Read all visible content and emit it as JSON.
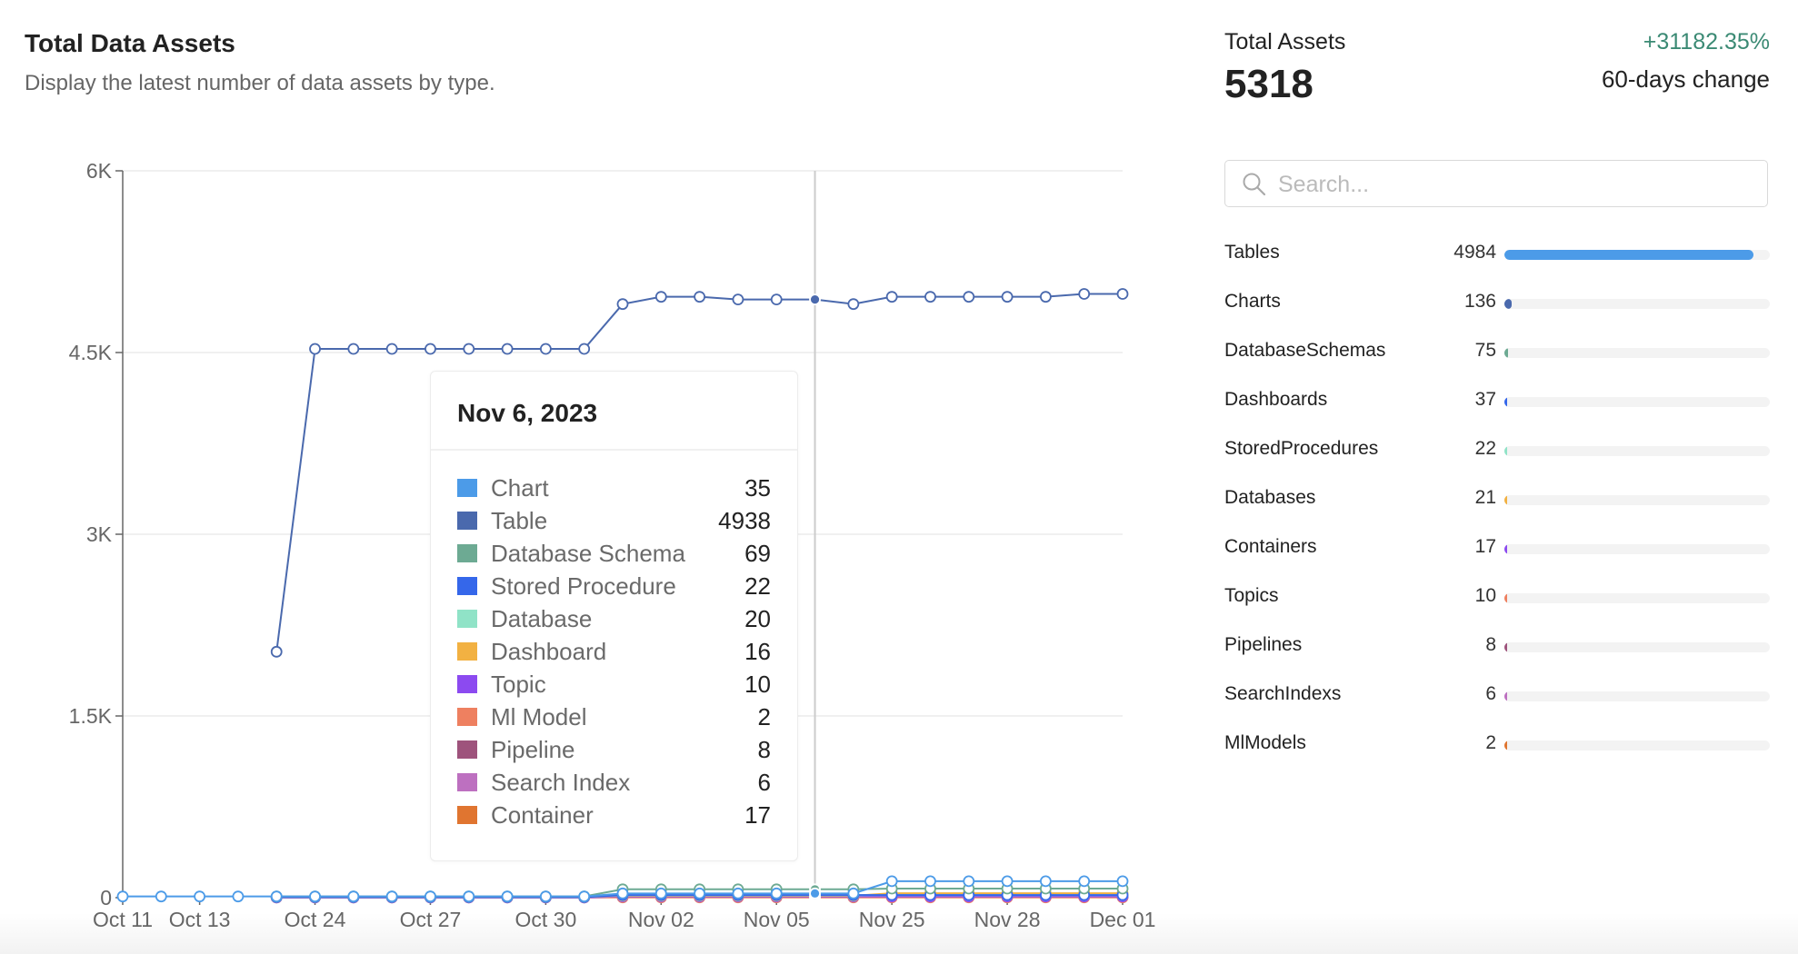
{
  "header": {
    "title": "Total Data Assets",
    "subtitle": "Display the latest number of data assets by type."
  },
  "chart_data": {
    "type": "line",
    "ylim": [
      0,
      6000
    ],
    "y_ticks": [
      {
        "value": 0,
        "label": "0"
      },
      {
        "value": 1500,
        "label": "1.5K"
      },
      {
        "value": 3000,
        "label": "3K"
      },
      {
        "value": 4500,
        "label": "4.5K"
      },
      {
        "value": 6000,
        "label": "6K"
      }
    ],
    "x_ticks": [
      {
        "index": 0,
        "label": "Oct 11"
      },
      {
        "index": 2,
        "label": "Oct 13"
      },
      {
        "index": 5,
        "label": "Oct 24"
      },
      {
        "index": 8,
        "label": "Oct 27"
      },
      {
        "index": 11,
        "label": "Oct 30"
      },
      {
        "index": 14,
        "label": "Nov 02"
      },
      {
        "index": 17,
        "label": "Nov 05"
      },
      {
        "index": 20,
        "label": "Nov 25"
      },
      {
        "index": 23,
        "label": "Nov 28"
      },
      {
        "index": 26,
        "label": "Dec 01"
      }
    ],
    "grid": "horizontal",
    "hover_index": 18,
    "series": [
      {
        "name": "Chart",
        "color": "#4c9be8",
        "values": [
          10,
          10,
          10,
          10,
          10,
          10,
          10,
          10,
          10,
          10,
          10,
          10,
          10,
          35,
          35,
          35,
          35,
          35,
          35,
          35,
          136,
          136,
          136,
          136,
          136,
          136,
          136
        ]
      },
      {
        "name": "Table",
        "color": "#4a69ad",
        "values": [
          null,
          null,
          null,
          null,
          2030,
          4530,
          4530,
          4530,
          4530,
          4530,
          4530,
          4530,
          4530,
          4900,
          4960,
          4960,
          4938,
          4938,
          4938,
          4900,
          4960,
          4960,
          4960,
          4960,
          4960,
          4984,
          4984
        ]
      },
      {
        "name": "Database Schema",
        "color": "#6daa93",
        "values": [
          null,
          null,
          null,
          null,
          10,
          10,
          10,
          10,
          10,
          10,
          10,
          10,
          10,
          69,
          69,
          69,
          69,
          69,
          69,
          69,
          75,
          75,
          75,
          75,
          75,
          75,
          75
        ]
      },
      {
        "name": "Stored Procedure",
        "color": "#3567ea",
        "values": [
          null,
          null,
          null,
          null,
          5,
          5,
          5,
          5,
          5,
          5,
          5,
          5,
          5,
          22,
          22,
          22,
          22,
          22,
          22,
          22,
          22,
          22,
          22,
          22,
          22,
          22,
          22
        ]
      },
      {
        "name": "Database",
        "color": "#90e3c7",
        "values": [
          null,
          null,
          null,
          null,
          5,
          5,
          5,
          5,
          5,
          5,
          5,
          5,
          5,
          20,
          20,
          20,
          20,
          20,
          20,
          20,
          21,
          21,
          21,
          21,
          21,
          21,
          21
        ]
      },
      {
        "name": "Dashboard",
        "color": "#f2b142",
        "values": [
          null,
          null,
          null,
          null,
          5,
          5,
          5,
          5,
          5,
          5,
          5,
          5,
          5,
          16,
          16,
          16,
          16,
          16,
          16,
          16,
          37,
          37,
          37,
          37,
          37,
          37,
          37
        ]
      },
      {
        "name": "Topic",
        "color": "#8c4af0",
        "values": [
          null,
          null,
          null,
          null,
          2,
          2,
          2,
          2,
          2,
          2,
          2,
          2,
          2,
          10,
          10,
          10,
          10,
          10,
          10,
          10,
          10,
          10,
          10,
          10,
          10,
          10,
          10
        ]
      },
      {
        "name": "Ml Model",
        "color": "#ee8060",
        "values": [
          null,
          null,
          null,
          null,
          2,
          2,
          2,
          2,
          2,
          2,
          2,
          2,
          2,
          2,
          2,
          2,
          2,
          2,
          2,
          2,
          2,
          2,
          2,
          2,
          2,
          2,
          2
        ]
      },
      {
        "name": "Pipeline",
        "color": "#9e537c",
        "values": [
          null,
          null,
          null,
          null,
          2,
          2,
          2,
          2,
          2,
          2,
          2,
          2,
          2,
          8,
          8,
          8,
          8,
          8,
          8,
          8,
          8,
          8,
          8,
          8,
          8,
          8,
          8
        ]
      },
      {
        "name": "Search Index",
        "color": "#bd70c0",
        "values": [
          null,
          null,
          null,
          null,
          1,
          1,
          1,
          1,
          1,
          1,
          1,
          1,
          1,
          6,
          6,
          6,
          6,
          6,
          6,
          6,
          6,
          6,
          6,
          6,
          6,
          6,
          6
        ]
      },
      {
        "name": "Container",
        "color": "#e07530",
        "values": [
          null,
          null,
          null,
          null,
          5,
          5,
          5,
          5,
          5,
          5,
          5,
          5,
          5,
          17,
          17,
          17,
          17,
          17,
          17,
          17,
          17,
          17,
          17,
          17,
          17,
          17,
          17
        ]
      }
    ]
  },
  "tooltip": {
    "date": "Nov 6, 2023",
    "items": [
      {
        "label": "Chart",
        "value": "35",
        "color": "#4c9be8"
      },
      {
        "label": "Table",
        "value": "4938",
        "color": "#4a69ad"
      },
      {
        "label": "Database Schema",
        "value": "69",
        "color": "#6daa93"
      },
      {
        "label": "Stored Procedure",
        "value": "22",
        "color": "#3567ea"
      },
      {
        "label": "Database",
        "value": "20",
        "color": "#90e3c7"
      },
      {
        "label": "Dashboard",
        "value": "16",
        "color": "#f2b142"
      },
      {
        "label": "Topic",
        "value": "10",
        "color": "#8c4af0"
      },
      {
        "label": "Ml Model",
        "value": "2",
        "color": "#ee8060"
      },
      {
        "label": "Pipeline",
        "value": "8",
        "color": "#9e537c"
      },
      {
        "label": "Search Index",
        "value": "6",
        "color": "#bd70c0"
      },
      {
        "label": "Container",
        "value": "17",
        "color": "#e07530"
      }
    ]
  },
  "summary": {
    "label": "Total Assets",
    "total": "5318",
    "change": "+31182.35%",
    "change_label": "60-days change",
    "change_color": "#3b8a74",
    "search_placeholder": "Search...",
    "search_icon": "search-icon",
    "items": [
      {
        "label": "Tables",
        "value": "4984",
        "fraction": 0.937,
        "color": "#4c9be8"
      },
      {
        "label": "Charts",
        "value": "136",
        "fraction": 0.026,
        "color": "#4a69ad"
      },
      {
        "label": "DatabaseSchemas",
        "value": "75",
        "fraction": 0.014,
        "color": "#6daa93"
      },
      {
        "label": "Dashboards",
        "value": "37",
        "fraction": 0.007,
        "color": "#3567ea"
      },
      {
        "label": "StoredProcedures",
        "value": "22",
        "fraction": 0.004,
        "color": "#90e3c7"
      },
      {
        "label": "Databases",
        "value": "21",
        "fraction": 0.004,
        "color": "#f2b142"
      },
      {
        "label": "Containers",
        "value": "17",
        "fraction": 0.003,
        "color": "#8c4af0"
      },
      {
        "label": "Topics",
        "value": "10",
        "fraction": 0.002,
        "color": "#ee8060"
      },
      {
        "label": "Pipelines",
        "value": "8",
        "fraction": 0.002,
        "color": "#9e537c"
      },
      {
        "label": "SearchIndexs",
        "value": "6",
        "fraction": 0.001,
        "color": "#bd70c0"
      },
      {
        "label": "MlModels",
        "value": "2",
        "fraction": 0.0004,
        "color": "#e07530"
      }
    ]
  }
}
